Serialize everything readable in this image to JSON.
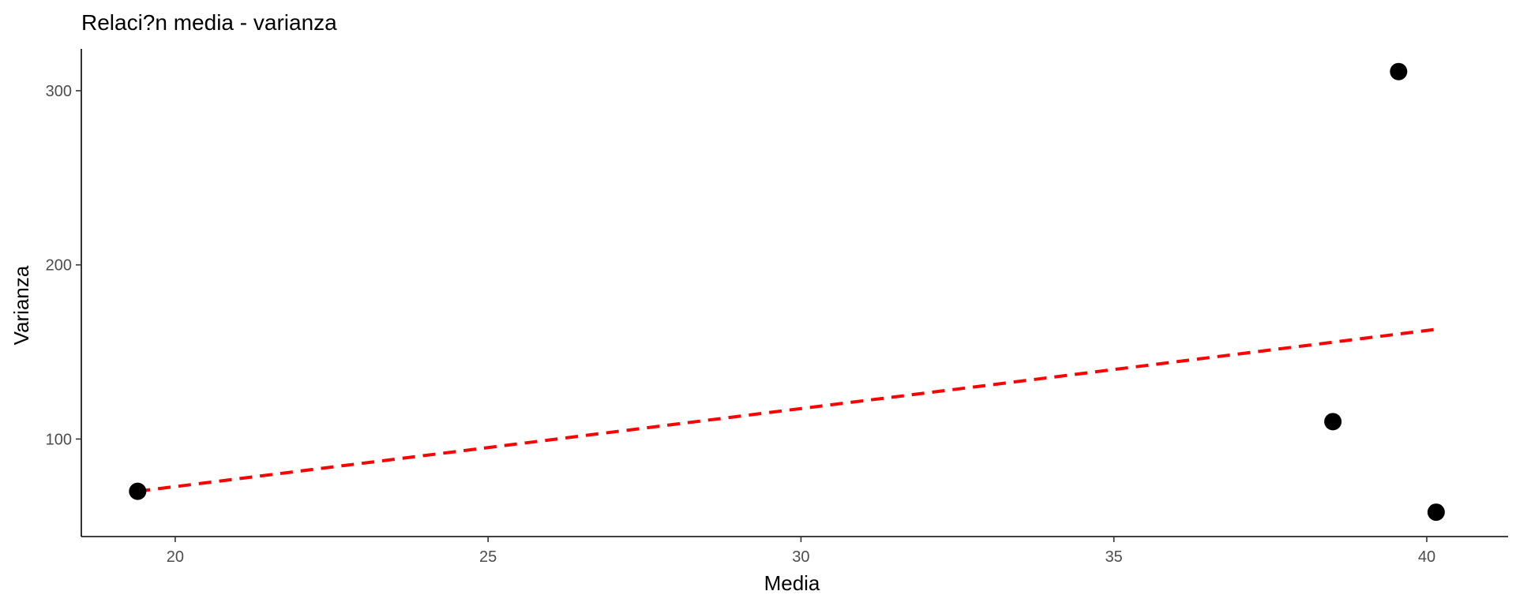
{
  "chart_data": {
    "type": "scatter",
    "title": "Relaci?n media - varianza",
    "xlabel": "Media",
    "ylabel": "Varianza",
    "xlim": [
      18.5,
      41.3
    ],
    "ylim": [
      44,
      324
    ],
    "xticks": [
      20,
      25,
      30,
      35,
      40
    ],
    "yticks": [
      100,
      200,
      300
    ],
    "grid": false,
    "legend": "none",
    "points": [
      {
        "x": 19.4,
        "y": 70
      },
      {
        "x": 38.5,
        "y": 110
      },
      {
        "x": 39.55,
        "y": 311
      },
      {
        "x": 40.15,
        "y": 58
      }
    ],
    "fit_line": {
      "style": "dashed",
      "color": "#ff0000",
      "x": [
        19.4,
        40.15
      ],
      "y": [
        70,
        163
      ]
    },
    "point_color": "#000000"
  }
}
